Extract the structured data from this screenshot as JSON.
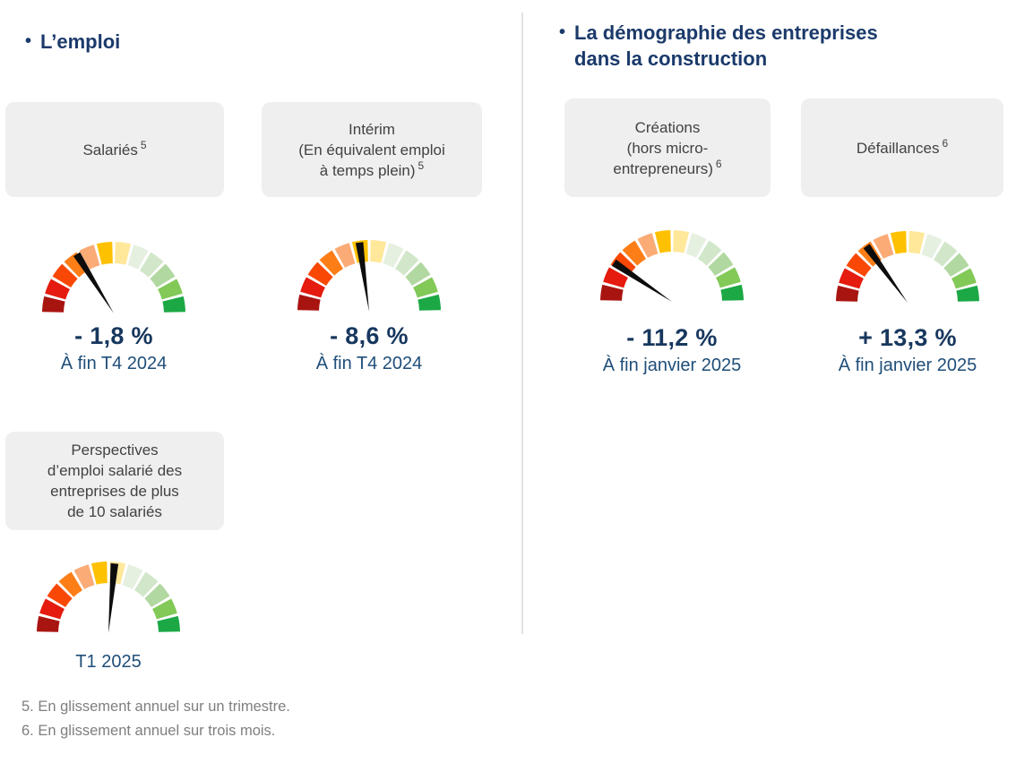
{
  "colors": {
    "heading": "#1b3a6b",
    "value_text": "#17375e",
    "period_text": "#1f4e79",
    "card_bg": "#efefef",
    "card_text": "#424242",
    "footnote_text": "#7f7f7f",
    "divider": "#e3e3e3",
    "needle": "#0d0d0d"
  },
  "sections": {
    "left": {
      "bullet": "•",
      "title": "L’emploi"
    },
    "right": {
      "bullet": "•",
      "title": "La démographie des entreprises dans la construction"
    }
  },
  "cards": [
    {
      "id": "salaries",
      "lines": [
        "Salariés"
      ],
      "sup": "5"
    },
    {
      "id": "interim",
      "lines": [
        "Intérim",
        "(En équivalent emploi",
        "à temps plein)"
      ],
      "sup": "5"
    },
    {
      "id": "creations",
      "lines": [
        "Créations",
        "(hors micro-",
        "entrepreneurs)"
      ],
      "sup": "6"
    },
    {
      "id": "defaillances",
      "lines": [
        "Défaillances"
      ],
      "sup": "6"
    },
    {
      "id": "perspectives",
      "lines": [
        "Perspectives",
        "d’emploi salarié des",
        "entreprises de plus",
        "de 10 salariés"
      ],
      "sup": ""
    }
  ],
  "segment_colors": [
    "#a81410",
    "#e41b0e",
    "#f94806",
    "#fd7e17",
    "#fbab76",
    "#fec102",
    "#ffe89a",
    "#e6f0e0",
    "#d2e7ca",
    "#b1d8a0",
    "#82c957",
    "#1ba845"
  ],
  "chart_data": [
    {
      "type": "gauge",
      "id": "salaries",
      "title": "Salariés",
      "value": "- 1,8 %",
      "period": "À fin T4 2024",
      "needle_deg": 122,
      "arc_deg": 180,
      "segments": 12,
      "scale": "red (left) to green (right)"
    },
    {
      "type": "gauge",
      "id": "interim",
      "title": "Intérim (En équivalent emploi à temps plein)",
      "value": "- 8,6 %",
      "period": "À fin T4 2024",
      "needle_deg": 98,
      "arc_deg": 180,
      "segments": 12,
      "scale": "red (left) to green (right)"
    },
    {
      "type": "gauge",
      "id": "creations",
      "title": "Créations (hors micro-entrepreneurs)",
      "value": "- 11,2 %",
      "period": "À fin janvier 2025",
      "needle_deg": 146,
      "arc_deg": 180,
      "segments": 12,
      "scale": "red (left) to green (right)"
    },
    {
      "type": "gauge",
      "id": "defaillances",
      "title": "Défaillances",
      "value": "+ 13,3 %",
      "period": "À fin janvier 2025",
      "needle_deg": 126,
      "arc_deg": 180,
      "segments": 12,
      "scale": "red (left) to green (right)"
    },
    {
      "type": "gauge",
      "id": "perspectives",
      "title": "Perspectives d’emploi salarié des entreprises de plus de 10 salariés",
      "value": "",
      "period": "T1 2025",
      "needle_deg": 85,
      "arc_deg": 180,
      "segments": 12,
      "scale": "red (left) to green (right)"
    }
  ],
  "footnotes": [
    "5. En glissement annuel sur un trimestre.",
    "6. En glissement annuel sur trois mois."
  ]
}
